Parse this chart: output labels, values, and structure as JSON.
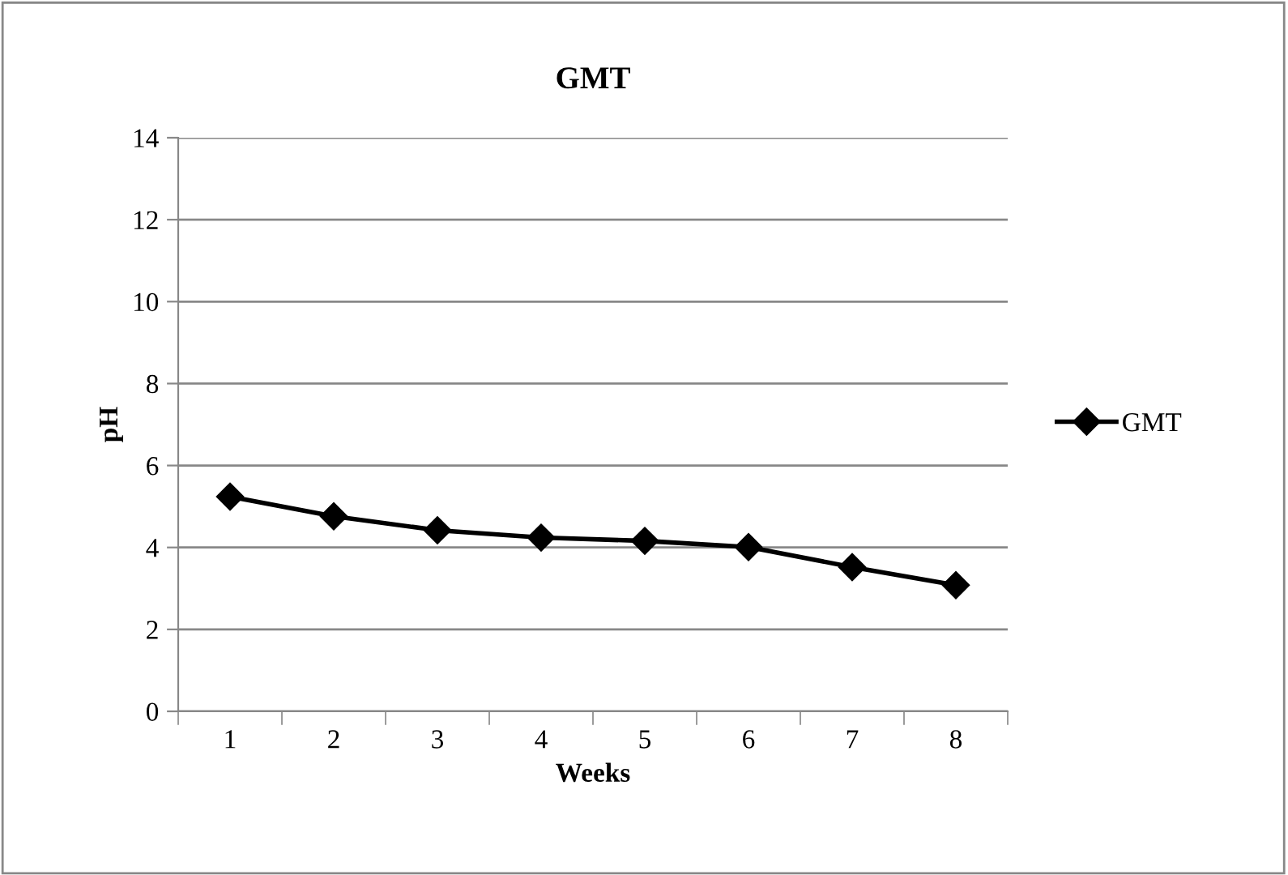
{
  "chart_data": {
    "type": "line",
    "title": "GMT",
    "xlabel": "Weeks",
    "ylabel": "pH",
    "categories": [
      "1",
      "2",
      "3",
      "4",
      "5",
      "6",
      "7",
      "8"
    ],
    "series": [
      {
        "name": "GMT",
        "color": "#000000",
        "values": [
          5.24,
          4.76,
          4.42,
          4.24,
          4.16,
          4.01,
          3.52,
          3.08
        ]
      }
    ],
    "ylim": [
      0,
      14
    ],
    "yticks": [
      0,
      2,
      4,
      6,
      8,
      10,
      12,
      14
    ],
    "grid": "y",
    "legend": "right",
    "marker": "diamond",
    "line_style": "solid"
  }
}
